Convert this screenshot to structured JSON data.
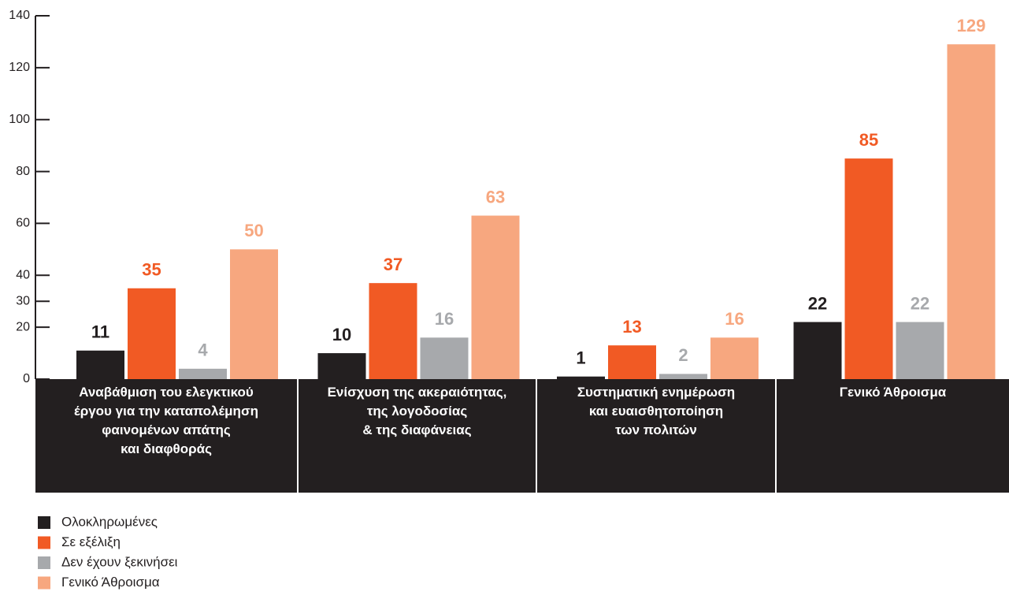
{
  "chart_data": {
    "type": "bar",
    "categories": [
      "Αναβάθμιση του ελεγκτικού\nέργου για την καταπολέμηση\nφαινομένων απάτης\nκαι διαφθοράς",
      "Ενίσχυση της ακεραιότητας,\nτης λογοδοσίας\n& της διαφάνειας",
      "Συστηματική ενημέρωση\nκαι ευαισθητοποίηση\nτων πολιτών",
      "Γενικό Άθροισμα"
    ],
    "series": [
      {
        "name": "Ολοκληρωμένες",
        "color": "#231f20",
        "values": [
          11,
          10,
          1,
          22
        ]
      },
      {
        "name": "Σε εξέλιξη",
        "color": "#f15a24",
        "values": [
          35,
          37,
          13,
          85
        ]
      },
      {
        "name": "Δεν έχουν ξεκινήσει",
        "color": "#a7a9ac",
        "values": [
          4,
          16,
          2,
          22
        ]
      },
      {
        "name": "Γενικό Άθροισμα",
        "color": "#f7a77f",
        "values": [
          50,
          63,
          16,
          129
        ]
      }
    ],
    "ylim": [
      0,
      140
    ],
    "yticks": [
      0,
      20,
      30,
      40,
      60,
      80,
      100,
      120,
      140
    ],
    "band_color": "#231f20"
  }
}
